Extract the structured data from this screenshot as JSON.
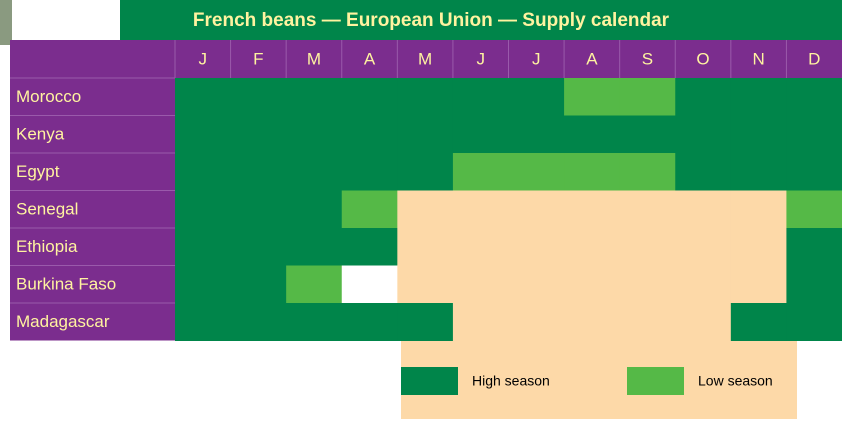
{
  "title": "French beans — European Union — Supply calendar",
  "months": [
    "J",
    "F",
    "M",
    "A",
    "M",
    "J",
    "J",
    "A",
    "S",
    "O",
    "N",
    "D"
  ],
  "rows": [
    {
      "name": "Morocco",
      "cells": [
        "#00854a",
        "#00854a",
        "#00854a",
        "#00854a",
        "#00854a",
        "#00854a",
        "#00854a",
        "#55b947",
        "#55b947",
        "#00854a",
        "#00854a",
        "#00854a"
      ]
    },
    {
      "name": "Kenya",
      "cells": [
        "#00854a",
        "#00854a",
        "#00854a",
        "#00854a",
        "#00854a",
        "#00854a",
        "#00854a",
        "#00854a",
        "#00854a",
        "#00854a",
        "#00854a",
        "#00854a"
      ]
    },
    {
      "name": "Egypt",
      "cells": [
        "#00854a",
        "#00854a",
        "#00854a",
        "#00854a",
        "#00854a",
        "#55b947",
        "#55b947",
        "#55b947",
        "#55b947",
        "#00854a",
        "#00854a",
        "#00854a"
      ]
    },
    {
      "name": "Senegal",
      "cells": [
        "#00854a",
        "#00854a",
        "#00854a",
        "#55b947",
        "#fdd9a8",
        "#fdd9a8",
        "#fdd9a8",
        "#fdd9a8",
        "#fdd9a8",
        "#fdd9a8",
        "#fdd9a8",
        "#55b947"
      ]
    },
    {
      "name": "Ethiopia",
      "cells": [
        "#00854a",
        "#00854a",
        "#00854a",
        "#00854a",
        "#fdd9a8",
        "#fdd9a8",
        "#fdd9a8",
        "#fdd9a8",
        "#fdd9a8",
        "#fdd9a8",
        "#fdd9a8",
        "#00854a"
      ]
    },
    {
      "name": "Burkina Faso",
      "cells": [
        "#00854a",
        "#00854a",
        "#55b947",
        "#ffffff",
        "#fdd9a8",
        "#fdd9a8",
        "#fdd9a8",
        "#fdd9a8",
        "#fdd9a8",
        "#fdd9a8",
        "#fdd9a8",
        "#00854a"
      ]
    },
    {
      "name": "Madagascar",
      "cells": [
        "#00854a",
        "#00854a",
        "#00854a",
        "#00854a",
        "#00854a",
        "#fdd9a8",
        "#fdd9a8",
        "#fdd9a8",
        "#fdd9a8",
        "#fdd9a8",
        "#00854a",
        "#00854a"
      ]
    }
  ],
  "legend": [
    {
      "label": "High season",
      "color": "#00854a"
    },
    {
      "label": "Low season",
      "color": "#55b947"
    }
  ]
}
